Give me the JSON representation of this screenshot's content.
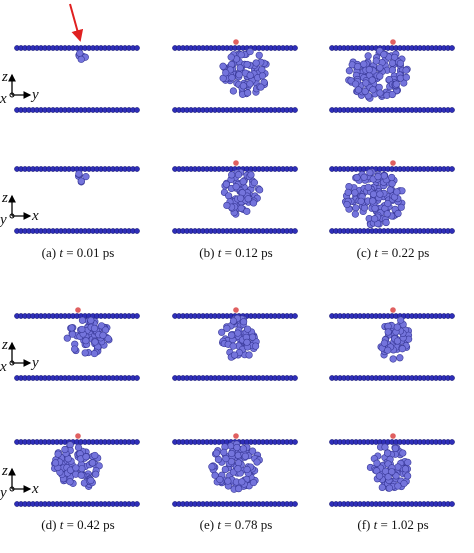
{
  "figure": {
    "captions": [
      {
        "label": "(a)",
        "var": "t",
        "value": "= 0.01 ps"
      },
      {
        "label": "(b)",
        "var": "t",
        "value": "= 0.12 ps"
      },
      {
        "label": "(c)",
        "var": "t",
        "value": "= 0.22 ps"
      },
      {
        "label": "(d)",
        "var": "t",
        "value": "= 0.42 ps"
      },
      {
        "label": "(e)",
        "var": "t",
        "value": "= 0.78 ps"
      },
      {
        "label": "(f)",
        "var": "t",
        "value": "= 1.02 ps"
      }
    ],
    "axes": [
      {
        "up": "z",
        "out": "x",
        "right": "y"
      },
      {
        "up": "z",
        "out": "y",
        "right": "x"
      },
      {
        "up": "z",
        "out": "x",
        "right": "y"
      },
      {
        "up": "z",
        "out": "y",
        "right": "x"
      }
    ]
  }
}
